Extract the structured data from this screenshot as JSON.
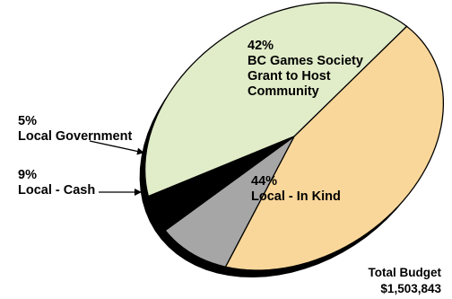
{
  "chart_data": {
    "type": "pie",
    "style": "3d-tilted",
    "slices": [
      {
        "label": "BC Games Society Grant to Host Community",
        "percent_label": "42%",
        "value": 42,
        "color": "#e1ecc9"
      },
      {
        "label": "Local - In Kind",
        "percent_label": "44%",
        "value": 44,
        "color": "#f9d79a"
      },
      {
        "label": "Local - Cash",
        "percent_label": "9%",
        "value": 9,
        "color": "#a6a6a6"
      },
      {
        "label": "Local Government",
        "percent_label": "5%",
        "value": 5,
        "color": "#000000"
      }
    ],
    "annotations": {
      "grant_lines": [
        "42%",
        "BC Games Society",
        "Grant to Host",
        "Community"
      ],
      "inkind_lines": [
        "44%",
        "Local - In Kind"
      ],
      "cash_lines": [
        "9%",
        "Local - Cash"
      ],
      "gov_lines": [
        "5%",
        "Local Government"
      ],
      "total_label": "Total Budget",
      "total_value": "$1,503,843"
    }
  }
}
